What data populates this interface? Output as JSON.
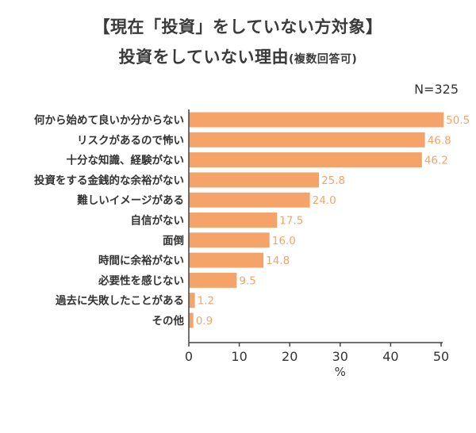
{
  "title_line1": "【現在「投資」をしていない方対象】",
  "title_line2_main": "投資をしていない理由",
  "title_line2_sub": "(複数回答可)",
  "sample_size": "N=325",
  "colors": {
    "bar": "#F6A36A",
    "value_label": "#F6A36A",
    "axis": "#444444",
    "text": "#333333"
  },
  "chart_data": {
    "type": "bar",
    "orientation": "horizontal",
    "categories": [
      "何から始めて良いか分からない",
      "リスクがあるので怖い",
      "十分な知識、経験がない",
      "投資をする金銭的な余裕がない",
      "難しいイメージがある",
      "自信がない",
      "面倒",
      "時間に余裕がない",
      "必要性を感じない",
      "過去に失敗したことがある",
      "その他"
    ],
    "values": [
      50.5,
      46.8,
      46.2,
      25.8,
      24.0,
      17.5,
      16.0,
      14.8,
      9.5,
      1.2,
      0.9
    ],
    "value_labels": [
      "50.5",
      "46.8",
      "46.2",
      "25.8",
      "24.0",
      "17.5",
      "16.0",
      "14.8",
      "9.5",
      "1.2",
      "0.9"
    ],
    "xlabel": "%",
    "xlim": [
      0,
      50
    ],
    "xticks": [
      "0",
      "10",
      "20",
      "30",
      "40",
      "50"
    ],
    "xtick_values": [
      0,
      10,
      20,
      30,
      40,
      50
    ],
    "grid": false,
    "legend": "none"
  }
}
